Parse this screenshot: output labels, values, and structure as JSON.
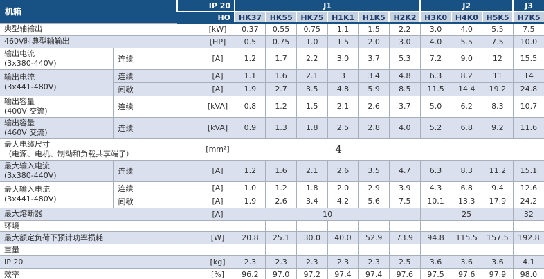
{
  "table": {
    "corner_label": "机箱",
    "unit_header": {
      "top": "IP 20",
      "bottom": "HO"
    },
    "groups": [
      {
        "label": "J1",
        "span": 6
      },
      {
        "label": "J2",
        "span": 3
      },
      {
        "label": "J3",
        "span": 1
      }
    ],
    "models": [
      "HK37",
      "HK55",
      "HK75",
      "H1K1",
      "H1K5",
      "H2K2",
      "H3K0",
      "H4K0",
      "H5K5",
      "H7K5"
    ],
    "rows": [
      {
        "type": "data",
        "label": "典型轴输出",
        "unit": "[kW]",
        "shaded": false,
        "values": [
          "0.37",
          "0.55",
          "0.75",
          "1.1",
          "1.5",
          "2.2",
          "3.0",
          "4.0",
          "5.5",
          "7.5"
        ]
      },
      {
        "type": "data",
        "label": "460V时典型轴输出",
        "unit": "[HP]",
        "shaded": true,
        "values": [
          "0.5",
          "0.75",
          "1.0",
          "1.5",
          "2.0",
          "3.0",
          "4.0",
          "5.5",
          "7.5",
          "10.0"
        ]
      },
      {
        "type": "data",
        "label": "输出电流",
        "label2": "(3x380-440V)",
        "sub": "连续",
        "unit": "[A]",
        "shaded": false,
        "tall": true,
        "values": [
          "1.2",
          "1.7",
          "2.2",
          "3.0",
          "3.7",
          "5.3",
          "7.2",
          "9.0",
          "12",
          "15.5"
        ]
      },
      {
        "type": "data",
        "label": "输出电流",
        "label2": "(3x441-480V)",
        "labelRowspan": 2,
        "sub": "连续",
        "unit": "[A]",
        "shaded": true,
        "values": [
          "1.1",
          "1.6",
          "2.1",
          "3",
          "3.4",
          "4.8",
          "6.3",
          "8.2",
          "11",
          "14"
        ]
      },
      {
        "type": "data",
        "noLabel": true,
        "sub": "间歇",
        "unit": "[A]",
        "shaded": true,
        "values": [
          "1.9",
          "2.7",
          "3.5",
          "4.8",
          "5.9",
          "8.5",
          "11.5",
          "14.4",
          "19.2",
          "24.8"
        ]
      },
      {
        "type": "data",
        "label": "输出容量",
        "label2": "(400V 交流)",
        "sub": "连续",
        "unit": "[kVA]",
        "shaded": false,
        "tall": true,
        "values": [
          "0.8",
          "1.2",
          "1.5",
          "2.1",
          "2.6",
          "3.7",
          "5.0",
          "6.2",
          "8.3",
          "10.7"
        ]
      },
      {
        "type": "data",
        "label": "输出容量",
        "label2": "(460V 交流)",
        "sub": "连续",
        "unit": "[kVA]",
        "shaded": true,
        "tall": true,
        "values": [
          "0.9",
          "1.3",
          "1.8",
          "2.5",
          "2.8",
          "4.0",
          "5.2",
          "6.8",
          "9.2",
          "11.6"
        ]
      },
      {
        "type": "wide",
        "label": "最大电缆尺寸",
        "label2": "（电源、电机、制动和负载共享端子）",
        "unit": "[mm²]",
        "shaded": false,
        "tall": true,
        "value": "4"
      },
      {
        "type": "data",
        "label": "最大输入电流",
        "label2": "(3x380-440V)",
        "sub": "连续",
        "unit": "[A]",
        "shaded": true,
        "tall": true,
        "values": [
          "1.2",
          "1.6",
          "2.1",
          "2.6",
          "3.5",
          "4.7",
          "6.3",
          "8.3",
          "11.2",
          "15.1"
        ]
      },
      {
        "type": "data",
        "label": "最大输入电流",
        "label2": "(3x441-480V)",
        "labelRowspan": 2,
        "sub": "连续",
        "unit": "[A]",
        "shaded": false,
        "values": [
          "1.0",
          "1.2",
          "1.8",
          "2.0",
          "2.9",
          "3.9",
          "4.3",
          "6.8",
          "9.4",
          "12.6"
        ]
      },
      {
        "type": "data",
        "noLabel": true,
        "sub": "间歇",
        "unit": "[A]",
        "shaded": false,
        "values": [
          "1.9",
          "2.6",
          "3.4",
          "4.2",
          "5.6",
          "7.5",
          "10.1",
          "13.3",
          "17.9",
          "24.2"
        ]
      },
      {
        "type": "grouped",
        "label": "最大熔断器",
        "unit": "[A]",
        "shaded": true,
        "values": [
          "10",
          "25",
          "32"
        ],
        "spans": [
          6,
          3,
          1
        ]
      },
      {
        "type": "section",
        "label": "环境"
      },
      {
        "type": "data",
        "label": "最大额定负荷下预计功率损耗",
        "unit": "[W]",
        "shaded": true,
        "values": [
          "20.8",
          "25.1",
          "30.0",
          "40.0",
          "52.9",
          "73.9",
          "94.8",
          "115.5",
          "157.5",
          "192.8"
        ]
      },
      {
        "type": "section",
        "label": "重量"
      },
      {
        "type": "data",
        "label": "IP 20",
        "unit": "[kg]",
        "shaded": true,
        "values": [
          "2.3",
          "2.3",
          "2.3",
          "2.3",
          "2.3",
          "2.5",
          "3.6",
          "3.6",
          "3.6",
          "4.1"
        ]
      },
      {
        "type": "data",
        "label": "效率",
        "unit": "[%]",
        "shaded": false,
        "values": [
          "96.2",
          "97.0",
          "97.2",
          "97.4",
          "97.4",
          "97.6",
          "97.5",
          "97.6",
          "97.9",
          "98.0"
        ]
      }
    ]
  },
  "colors": {
    "header_navy": "#185183",
    "model_cell_bg": "#C6D1DF",
    "model_cell_text": "#1E3C6E",
    "shaded_row_bg": "#DBE0EE",
    "grid_border": "#A7AFBA"
  }
}
